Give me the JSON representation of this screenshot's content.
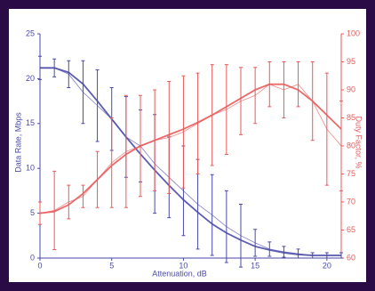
{
  "chart_data": {
    "type": "line",
    "x_label": "Attenuation, dB",
    "y_label": "Data Rate, Mbps",
    "y2_label": "Duty Factor, %",
    "x": [
      0,
      1,
      2,
      3,
      4,
      5,
      6,
      7,
      8,
      9,
      10,
      11,
      12,
      13,
      14,
      15,
      16,
      17,
      18,
      19,
      20,
      21
    ],
    "xlim": [
      0,
      21
    ],
    "xticks": [
      0,
      5,
      10,
      15,
      20
    ],
    "ylim": [
      0,
      25
    ],
    "yticks": [
      0,
      5,
      10,
      15,
      20,
      25
    ],
    "y2lim": [
      60,
      100
    ],
    "y2ticks": [
      60,
      65,
      70,
      75,
      80,
      85,
      90,
      95,
      100
    ],
    "series": [
      {
        "color": "#4a4aa8",
        "values": [
          21.2,
          21.2,
          20.5,
          18.5,
          17,
          15.5,
          13.5,
          12.5,
          10.5,
          9,
          7.5,
          6,
          4.8,
          3.5,
          2.5,
          1.7,
          1,
          0.7,
          0.5,
          0.3,
          0.3,
          0.3
        ],
        "errors": [
          1.3,
          1,
          1.5,
          3.5,
          4,
          3.5,
          4.5,
          4,
          5.5,
          4.5,
          5,
          5,
          4.5,
          4,
          3.5,
          1.5,
          0.8,
          0.6,
          0.5,
          0.3,
          0.3,
          0.3
        ]
      },
      {
        "color": "#4a4aa8",
        "values": [
          21.2,
          21.2,
          20.7,
          19.4,
          17.5,
          15.5,
          13.5,
          11.6,
          9.8,
          8.1,
          6.5,
          5.1,
          3.8,
          2.8,
          2,
          1.3,
          0.9,
          0.6,
          0.4,
          0.3,
          0.3,
          0.3
        ]
      },
      {
        "color": "#e85a5a",
        "axis": "y2",
        "values": [
          68,
          68.5,
          70,
          71,
          74,
          77,
          79,
          80,
          81,
          81.5,
          82.5,
          84,
          85.5,
          86.5,
          88,
          89,
          91,
          90,
          91,
          88,
          83,
          80
        ],
        "errors": [
          2,
          7,
          3,
          2,
          5,
          8,
          10,
          9,
          9,
          10,
          10,
          9,
          9,
          8,
          6,
          5,
          4,
          5,
          4,
          7,
          10,
          8
        ]
      },
      {
        "color": "#e85a5a",
        "axis": "y2",
        "values": [
          68,
          68.3,
          69.5,
          71.5,
          74,
          76.5,
          78.5,
          80,
          81,
          82,
          83,
          84.2,
          85.5,
          87,
          88.5,
          90,
          91,
          91,
          90,
          88,
          85.5,
          83
        ]
      }
    ]
  }
}
